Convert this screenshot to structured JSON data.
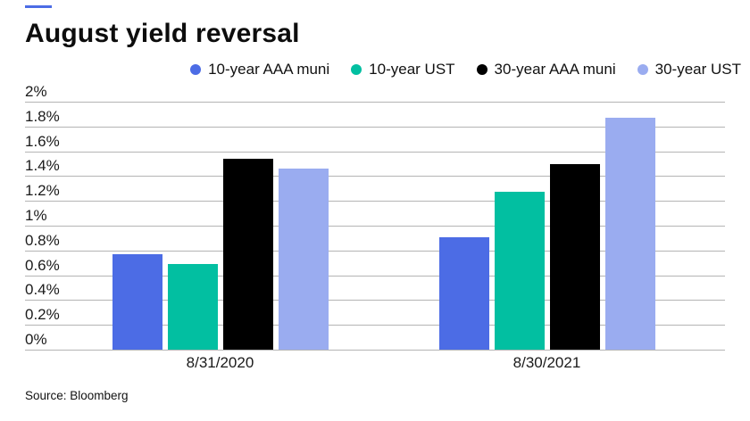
{
  "header": {
    "title": "August yield reversal",
    "accent_color": "#4c6ce5"
  },
  "source": {
    "label": "Source: Bloomberg"
  },
  "chart_data": {
    "type": "bar",
    "title": "August yield reversal",
    "categories": [
      "8/31/2020",
      "8/30/2021"
    ],
    "series": [
      {
        "name": "10-year AAA muni",
        "color": "#4c6ce5",
        "values": [
          0.77,
          0.91
        ]
      },
      {
        "name": "10-year UST",
        "color": "#02bfa1",
        "values": [
          0.69,
          1.27
        ]
      },
      {
        "name": "30-year AAA muni",
        "color": "#000000",
        "values": [
          1.54,
          1.5
        ]
      },
      {
        "name": "30-year UST",
        "color": "#9aacf0",
        "values": [
          1.46,
          1.87
        ]
      }
    ],
    "xlabel": "",
    "ylabel": "",
    "ylim": [
      0,
      2
    ],
    "ytick_step": 0.2,
    "ytick_labels": [
      "0%",
      "0.2%",
      "0.4%",
      "0.6%",
      "0.8%",
      "1%",
      "1.2%",
      "1.4%",
      "1.6%",
      "1.8%",
      "2%"
    ],
    "grid": true,
    "gridline_color": "#b4b4b4",
    "legend_position": "top-right",
    "source": "Source: Bloomberg"
  }
}
